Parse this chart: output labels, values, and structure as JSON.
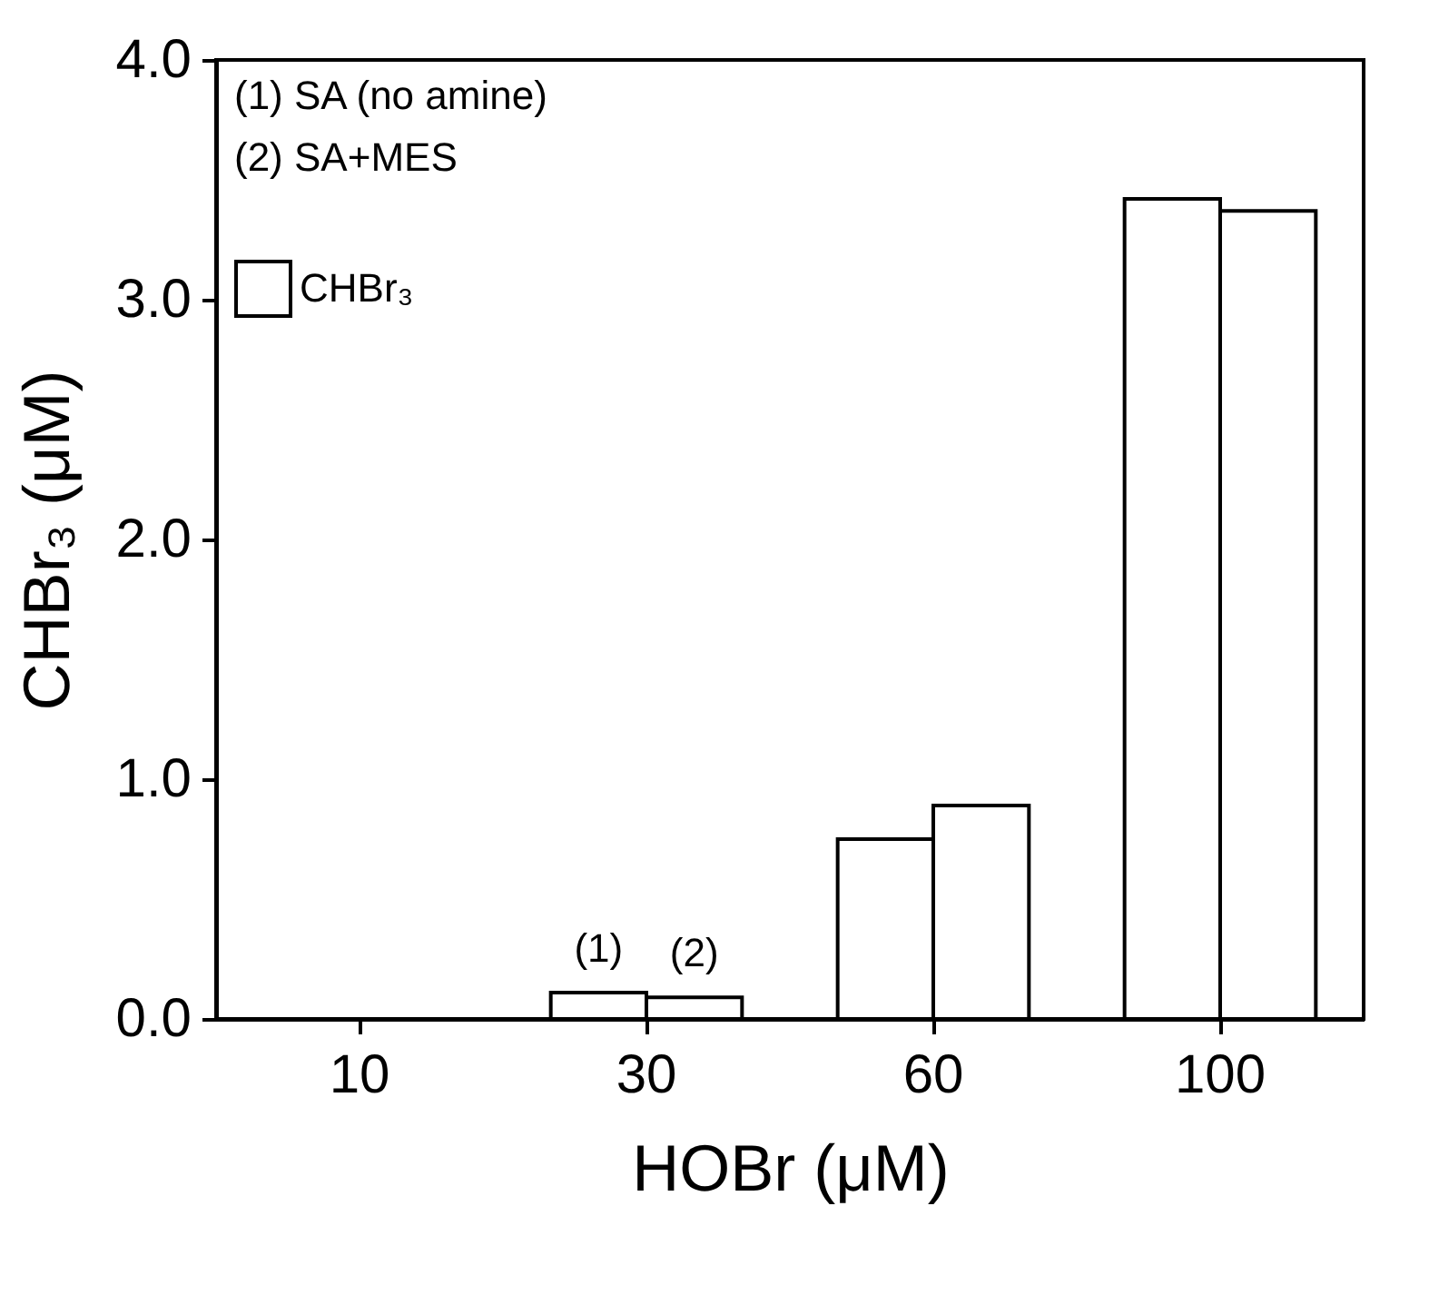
{
  "chart_data": {
    "type": "bar",
    "xlabel": "HOBr (μM)",
    "ylabel": "CHBr₃ (μM)",
    "categories": [
      "10",
      "30",
      "60",
      "100"
    ],
    "series": [
      {
        "name": "CHBr₃",
        "color": "#ffffff",
        "values": [
          0,
          0.11,
          0.75,
          3.42
        ]
      },
      {
        "color": "#ffffff",
        "values": [
          0,
          0.09,
          0.89,
          3.37
        ]
      }
    ],
    "ylim": [
      0,
      4
    ],
    "yticks": [
      {
        "value": 0,
        "label": "0.0"
      },
      {
        "value": 1,
        "label": "1.0"
      },
      {
        "value": 2,
        "label": "2.0"
      },
      {
        "value": 3,
        "label": "3.0"
      },
      {
        "value": 4,
        "label": "4.0"
      }
    ],
    "annotations": [
      "(1) SA (no amine)",
      "(2) SA+MES",
      {
        "text": "(1)",
        "x": "30",
        "y": 0.11
      },
      {
        "text": "(2)",
        "x": "30",
        "y": 0.09
      }
    ],
    "legend": "top left",
    "grid": false
  }
}
